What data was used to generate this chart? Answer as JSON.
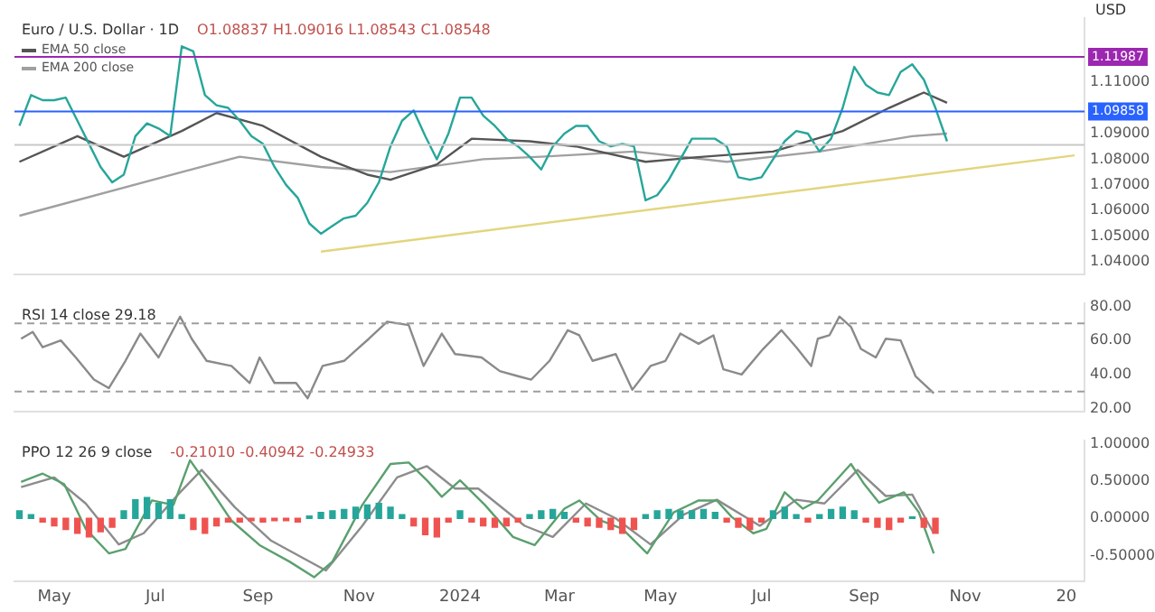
{
  "chart_data": [
    {
      "type": "line",
      "title": "Euro / U.S. Dollar · 1D",
      "subtitle": "O1.08837 H1.09016 L1.08543 C1.08548",
      "ylabel": "USD",
      "legend": "top left",
      "marker": "none",
      "tick_labels": "y",
      "xlim": [
        "2023-04-07",
        "2025-01-12"
      ],
      "ylim": [
        1.035,
        1.135
      ],
      "yticks": [
        {
          "value": 1.04,
          "label": "1.04000"
        },
        {
          "value": 1.05,
          "label": "1.05000"
        },
        {
          "value": 1.06,
          "label": "1.06000"
        },
        {
          "value": 1.07,
          "label": "1.07000"
        },
        {
          "value": 1.08,
          "label": "1.08000"
        },
        {
          "value": 1.09,
          "label": "1.09000"
        },
        {
          "value": 1.11,
          "label": "1.11000"
        }
      ],
      "ref_lines": [
        {
          "axis": "y",
          "value": 1.11987,
          "label": "1.11987",
          "color": "#9c27b0"
        },
        {
          "axis": "y",
          "value": 1.09858,
          "label": "1.09858",
          "color": "#2962ff"
        },
        {
          "axis": "y",
          "value": 1.0856,
          "color": "#c8c8c8"
        }
      ],
      "series": [
        {
          "color": "#26a69a",
          "x": [
            "2023-04-10",
            "2023-04-17",
            "2023-04-24",
            "2023-05-01",
            "2023-05-08",
            "2023-05-15",
            "2023-05-22",
            "2023-05-29",
            "2023-06-05",
            "2023-06-12",
            "2023-06-19",
            "2023-06-26",
            "2023-07-03",
            "2023-07-10",
            "2023-07-17",
            "2023-07-24",
            "2023-07-31",
            "2023-08-07",
            "2023-08-14",
            "2023-08-21",
            "2023-08-28",
            "2023-09-04",
            "2023-09-11",
            "2023-09-18",
            "2023-09-25",
            "2023-10-02",
            "2023-10-09",
            "2023-10-16",
            "2023-10-23",
            "2023-10-30",
            "2023-11-06",
            "2023-11-13",
            "2023-11-20",
            "2023-11-27",
            "2023-12-04",
            "2023-12-11",
            "2023-12-18",
            "2023-12-25",
            "2024-01-01",
            "2024-01-08",
            "2024-01-15",
            "2024-01-22",
            "2024-01-29",
            "2024-02-05",
            "2024-02-12",
            "2024-02-19",
            "2024-02-26",
            "2024-03-04",
            "2024-03-11",
            "2024-03-18",
            "2024-03-25",
            "2024-04-01",
            "2024-04-08",
            "2024-04-15",
            "2024-04-22",
            "2024-04-29",
            "2024-05-06",
            "2024-05-13",
            "2024-05-20",
            "2024-05-27",
            "2024-06-03",
            "2024-06-10",
            "2024-06-17",
            "2024-06-24",
            "2024-07-01",
            "2024-07-08",
            "2024-07-15",
            "2024-07-22",
            "2024-07-29",
            "2024-08-05",
            "2024-08-12",
            "2024-08-19",
            "2024-08-26",
            "2024-09-02",
            "2024-09-09",
            "2024-09-16",
            "2024-09-23",
            "2024-09-30",
            "2024-10-07",
            "2024-10-14",
            "2024-10-21"
          ],
          "values": [
            1.093,
            1.105,
            1.103,
            1.103,
            1.104,
            1.095,
            1.086,
            1.077,
            1.071,
            1.074,
            1.089,
            1.094,
            1.092,
            1.089,
            1.124,
            1.122,
            1.105,
            1.101,
            1.1,
            1.095,
            1.089,
            1.086,
            1.077,
            1.07,
            1.065,
            1.055,
            1.051,
            1.054,
            1.057,
            1.058,
            1.063,
            1.071,
            1.085,
            1.095,
            1.099,
            1.089,
            1.08,
            1.09,
            1.104,
            1.104,
            1.097,
            1.093,
            1.088,
            1.085,
            1.081,
            1.076,
            1.085,
            1.09,
            1.093,
            1.093,
            1.087,
            1.085,
            1.086,
            1.085,
            1.064,
            1.066,
            1.072,
            1.08,
            1.088,
            1.088,
            1.088,
            1.085,
            1.073,
            1.072,
            1.073,
            1.08,
            1.087,
            1.091,
            1.09,
            1.083,
            1.088,
            1.1,
            1.116,
            1.109,
            1.106,
            1.105,
            1.114,
            1.117,
            1.111,
            1.1,
            1.087
          ]
        },
        {
          "name": "EMA 50 close",
          "color": "#555555",
          "x": [
            "2023-04-10",
            "2023-05-15",
            "2023-06-12",
            "2023-07-17",
            "2023-08-07",
            "2023-09-04",
            "2023-10-09",
            "2023-11-06",
            "2023-11-20",
            "2023-12-18",
            "2024-01-08",
            "2024-02-12",
            "2024-03-11",
            "2024-04-22",
            "2024-05-27",
            "2024-07-08",
            "2024-08-19",
            "2024-09-16",
            "2024-10-07",
            "2024-10-21"
          ],
          "values": [
            1.079,
            1.089,
            1.081,
            1.091,
            1.098,
            1.093,
            1.081,
            1.074,
            1.072,
            1.078,
            1.088,
            1.087,
            1.085,
            1.079,
            1.081,
            1.083,
            1.091,
            1.1,
            1.106,
            1.102
          ]
        },
        {
          "name": "EMA 200 close",
          "color": "#a0a0a0",
          "x": [
            "2023-04-10",
            "2023-07-17",
            "2023-08-21",
            "2023-10-09",
            "2023-11-20",
            "2024-01-15",
            "2024-02-19",
            "2024-04-15",
            "2024-06-10",
            "2024-08-05",
            "2024-09-30",
            "2024-10-21"
          ],
          "values": [
            1.058,
            1.075,
            1.081,
            1.077,
            1.075,
            1.08,
            1.081,
            1.083,
            1.079,
            1.083,
            1.089,
            1.09
          ]
        },
        {
          "color": "#e3d57e",
          "x": [
            "2023-10-09",
            "2025-01-06"
          ],
          "values": [
            1.044,
            1.0815
          ]
        }
      ]
    },
    {
      "type": "line",
      "title": "RSI 14 close 29.18",
      "marker": "none",
      "tick_labels": "y",
      "xlim": [
        "2023-04-07",
        "2025-01-12"
      ],
      "ylim": [
        18,
        82
      ],
      "yticks": [
        {
          "value": 20,
          "label": "20.00"
        },
        {
          "value": 40,
          "label": "40.00"
        },
        {
          "value": 60,
          "label": "60.00"
        },
        {
          "value": 80,
          "label": "80.00"
        }
      ],
      "ref_lines": [
        {
          "axis": "y",
          "value": 70,
          "color": "#9e9e9e",
          "line_style": "dashed"
        },
        {
          "axis": "y",
          "value": 30,
          "color": "#9e9e9e",
          "line_style": "dashed"
        }
      ],
      "series": [
        {
          "color": "#8a8a8a",
          "x": [
            "2023-04-11",
            "2023-04-18",
            "2023-04-24",
            "2023-05-05",
            "2023-05-14",
            "2023-05-25",
            "2023-06-03",
            "2023-06-13",
            "2023-06-22",
            "2023-07-03",
            "2023-07-16",
            "2023-07-23",
            "2023-08-01",
            "2023-08-16",
            "2023-08-27",
            "2023-09-02",
            "2023-09-11",
            "2023-09-24",
            "2023-10-01",
            "2023-10-10",
            "2023-10-23",
            "2023-10-31",
            "2023-11-07",
            "2023-11-18",
            "2023-12-01",
            "2023-12-10",
            "2023-12-21",
            "2023-12-29",
            "2024-01-14",
            "2024-01-25",
            "2024-02-05",
            "2024-02-13",
            "2024-02-24",
            "2024-03-06",
            "2024-03-13",
            "2024-03-21",
            "2024-04-04",
            "2024-04-14",
            "2024-04-25",
            "2024-05-04",
            "2024-05-13",
            "2024-05-24",
            "2024-06-02",
            "2024-06-08",
            "2024-06-19",
            "2024-07-02",
            "2024-07-13",
            "2024-07-22",
            "2024-07-31",
            "2024-08-04",
            "2024-08-11",
            "2024-08-17",
            "2024-08-24",
            "2024-08-30",
            "2024-09-08",
            "2024-09-14",
            "2024-09-23",
            "2024-10-02",
            "2024-10-13"
          ],
          "values": [
            61,
            65,
            56,
            60,
            50,
            37,
            32,
            48,
            64,
            50,
            74,
            61,
            48,
            45,
            35,
            50,
            35,
            35,
            26,
            45,
            48,
            55,
            61,
            71,
            69,
            45,
            64,
            52,
            50,
            42,
            39,
            37,
            48,
            66,
            63,
            48,
            52,
            31,
            45,
            48,
            64,
            58,
            63,
            43,
            40,
            55,
            66,
            56,
            45,
            61,
            63,
            74,
            68,
            55,
            50,
            61,
            60,
            39,
            29
          ]
        }
      ]
    },
    {
      "type": "line",
      "title": "PPO 12 26 9 close",
      "subtitle": "-0.21010 -0.40942 -0.24933",
      "marker": "none",
      "xlim": [
        "2023-04-07",
        "2025-01-12"
      ],
      "xticks": [
        {
          "value": "2023-05-01",
          "label": "May"
        },
        {
          "value": "2023-07-01",
          "label": "Jul"
        },
        {
          "value": "2023-09-01",
          "label": "Sep"
        },
        {
          "value": "2023-11-01",
          "label": "Nov"
        },
        {
          "value": "2024-01-01",
          "label": "2024"
        },
        {
          "value": "2024-03-01",
          "label": "Mar"
        },
        {
          "value": "2024-05-01",
          "label": "May"
        },
        {
          "value": "2024-07-01",
          "label": "Jul"
        },
        {
          "value": "2024-09-01",
          "label": "Sep"
        },
        {
          "value": "2024-11-01",
          "label": "Nov"
        },
        {
          "value": "2025-01-01",
          "label": "20"
        }
      ],
      "ylim": [
        -0.85,
        1.05
      ],
      "yticks": [
        {
          "value": -0.5,
          "label": "-0.50000"
        },
        {
          "value": 0,
          "label": "0.00000"
        },
        {
          "value": 0.5,
          "label": "0.50000"
        },
        {
          "value": 1,
          "label": "1.00000"
        }
      ],
      "series": [
        {
          "type": "bar",
          "x": [
            "2023-04-10",
            "2023-04-17",
            "2023-04-24",
            "2023-05-01",
            "2023-05-08",
            "2023-05-15",
            "2023-05-22",
            "2023-05-29",
            "2023-06-05",
            "2023-06-12",
            "2023-06-19",
            "2023-06-26",
            "2023-07-03",
            "2023-07-10",
            "2023-07-17",
            "2023-07-24",
            "2023-07-31",
            "2023-08-07",
            "2023-08-14",
            "2023-08-21",
            "2023-08-28",
            "2023-09-04",
            "2023-09-11",
            "2023-09-18",
            "2023-09-25",
            "2023-10-02",
            "2023-10-09",
            "2023-10-16",
            "2023-10-23",
            "2023-10-30",
            "2023-11-06",
            "2023-11-13",
            "2023-11-20",
            "2023-11-27",
            "2023-12-04",
            "2023-12-11",
            "2023-12-18",
            "2023-12-25",
            "2024-01-01",
            "2024-01-08",
            "2024-01-15",
            "2024-01-22",
            "2024-01-29",
            "2024-02-05",
            "2024-02-12",
            "2024-02-19",
            "2024-02-26",
            "2024-03-04",
            "2024-03-11",
            "2024-03-18",
            "2024-03-25",
            "2024-04-01",
            "2024-04-08",
            "2024-04-15",
            "2024-04-22",
            "2024-04-29",
            "2024-05-06",
            "2024-05-13",
            "2024-05-20",
            "2024-05-27",
            "2024-06-03",
            "2024-06-10",
            "2024-06-17",
            "2024-06-24",
            "2024-07-01",
            "2024-07-08",
            "2024-07-15",
            "2024-07-22",
            "2024-07-29",
            "2024-08-05",
            "2024-08-12",
            "2024-08-19",
            "2024-08-26",
            "2024-09-02",
            "2024-09-09",
            "2024-09-16",
            "2024-09-23",
            "2024-09-30",
            "2024-10-07",
            "2024-10-14"
          ],
          "values": [
            0.1,
            0.05,
            -0.05,
            -0.1,
            -0.15,
            -0.2,
            -0.25,
            -0.18,
            -0.12,
            0.1,
            0.25,
            0.28,
            0.2,
            0.25,
            0.05,
            -0.15,
            -0.2,
            -0.1,
            -0.05,
            -0.05,
            -0.03,
            -0.05,
            -0.03,
            -0.03,
            -0.05,
            0.03,
            0.08,
            0.1,
            0.12,
            0.15,
            0.18,
            0.2,
            0.15,
            0.05,
            -0.1,
            -0.22,
            -0.25,
            -0.05,
            0.1,
            -0.05,
            -0.1,
            -0.12,
            -0.1,
            -0.05,
            0.05,
            0.1,
            0.12,
            0.08,
            -0.05,
            -0.1,
            -0.12,
            -0.15,
            -0.2,
            -0.15,
            0.05,
            0.1,
            0.12,
            0.1,
            0.1,
            0.12,
            0.08,
            -0.05,
            -0.12,
            -0.15,
            -0.05,
            0.1,
            0.15,
            0.05,
            -0.05,
            0.05,
            0.12,
            0.15,
            0.1,
            -0.05,
            -0.12,
            -0.15,
            -0.05,
            0.02,
            -0.12,
            -0.2
          ],
          "colors": [
            "#26a69a",
            "#26a69a",
            "#ef5350",
            "#ef5350",
            "#ef5350",
            "#ef5350",
            "#ef5350",
            "#ef5350",
            "#ef5350",
            "#26a69a",
            "#26a69a",
            "#26a69a",
            "#26a69a",
            "#26a69a",
            "#26a69a",
            "#ef5350",
            "#ef5350",
            "#ef5350",
            "#ef5350",
            "#ef5350",
            "#ef5350",
            "#ef5350",
            "#ef5350",
            "#ef5350",
            "#ef5350",
            "#26a69a",
            "#26a69a",
            "#26a69a",
            "#26a69a",
            "#26a69a",
            "#26a69a",
            "#26a69a",
            "#26a69a",
            "#26a69a",
            "#ef5350",
            "#ef5350",
            "#ef5350",
            "#ef5350",
            "#26a69a",
            "#ef5350",
            "#ef5350",
            "#ef5350",
            "#ef5350",
            "#ef5350",
            "#26a69a",
            "#26a69a",
            "#26a69a",
            "#26a69a",
            "#ef5350",
            "#ef5350",
            "#ef5350",
            "#ef5350",
            "#ef5350",
            "#ef5350",
            "#26a69a",
            "#26a69a",
            "#26a69a",
            "#26a69a",
            "#26a69a",
            "#26a69a",
            "#26a69a",
            "#ef5350",
            "#ef5350",
            "#ef5350",
            "#ef5350",
            "#26a69a",
            "#26a69a",
            "#26a69a",
            "#ef5350",
            "#26a69a",
            "#26a69a",
            "#26a69a",
            "#26a69a",
            "#ef5350",
            "#ef5350",
            "#ef5350",
            "#ef5350",
            "#26a69a",
            "#ef5350",
            "#ef5350"
          ]
        },
        {
          "color": "#5aa06e",
          "x": [
            "2023-04-11",
            "2023-04-24",
            "2023-05-07",
            "2023-05-20",
            "2023-06-03",
            "2023-06-13",
            "2023-06-29",
            "2023-07-12",
            "2023-07-22",
            "2023-08-03",
            "2023-08-16",
            "2023-09-02",
            "2023-09-20",
            "2023-10-05",
            "2023-10-16",
            "2023-11-03",
            "2023-11-20",
            "2023-12-01",
            "2023-12-12",
            "2023-12-21",
            "2024-01-01",
            "2024-01-16",
            "2024-02-02",
            "2024-02-15",
            "2024-03-04",
            "2024-03-13",
            "2024-03-26",
            "2024-04-08",
            "2024-04-23",
            "2024-05-09",
            "2024-05-24",
            "2024-06-04",
            "2024-06-13",
            "2024-06-26",
            "2024-07-04",
            "2024-07-15",
            "2024-07-26",
            "2024-08-04",
            "2024-08-24",
            "2024-09-01",
            "2024-09-10",
            "2024-09-25",
            "2024-10-04",
            "2024-10-13"
          ],
          "values": [
            0.49,
            0.6,
            0.46,
            -0.14,
            -0.47,
            -0.41,
            0.24,
            0.18,
            0.78,
            0.4,
            -0.03,
            -0.36,
            -0.58,
            -0.79,
            -0.58,
            0.18,
            0.73,
            0.75,
            0.51,
            0.29,
            0.51,
            0.18,
            -0.25,
            -0.36,
            0.13,
            0.24,
            -0.03,
            -0.14,
            -0.47,
            0.08,
            0.24,
            0.24,
            0.02,
            -0.2,
            -0.14,
            0.35,
            0.13,
            0.24,
            0.73,
            0.46,
            0.21,
            0.35,
            0.08,
            -0.47
          ]
        },
        {
          "color": "#8c8c8c",
          "x": [
            "2023-04-11",
            "2023-05-01",
            "2023-05-20",
            "2023-06-09",
            "2023-06-24",
            "2023-07-16",
            "2023-07-29",
            "2023-08-18",
            "2023-09-09",
            "2023-10-12",
            "2023-11-03",
            "2023-11-24",
            "2023-12-12",
            "2023-12-29",
            "2024-01-12",
            "2024-02-09",
            "2024-02-26",
            "2024-03-17",
            "2024-04-04",
            "2024-04-25",
            "2024-05-15",
            "2024-06-04",
            "2024-06-30",
            "2024-07-22",
            "2024-08-08",
            "2024-08-28",
            "2024-09-14",
            "2024-09-30",
            "2024-10-13"
          ],
          "values": [
            0.42,
            0.55,
            0.2,
            -0.35,
            -0.2,
            0.35,
            0.65,
            0.15,
            -0.3,
            -0.7,
            -0.1,
            0.55,
            0.7,
            0.4,
            0.4,
            -0.1,
            -0.25,
            0.2,
            0,
            -0.35,
            0.05,
            0.25,
            -0.1,
            0.25,
            0.2,
            0.65,
            0.3,
            0.32,
            -0.2
          ]
        }
      ]
    }
  ]
}
